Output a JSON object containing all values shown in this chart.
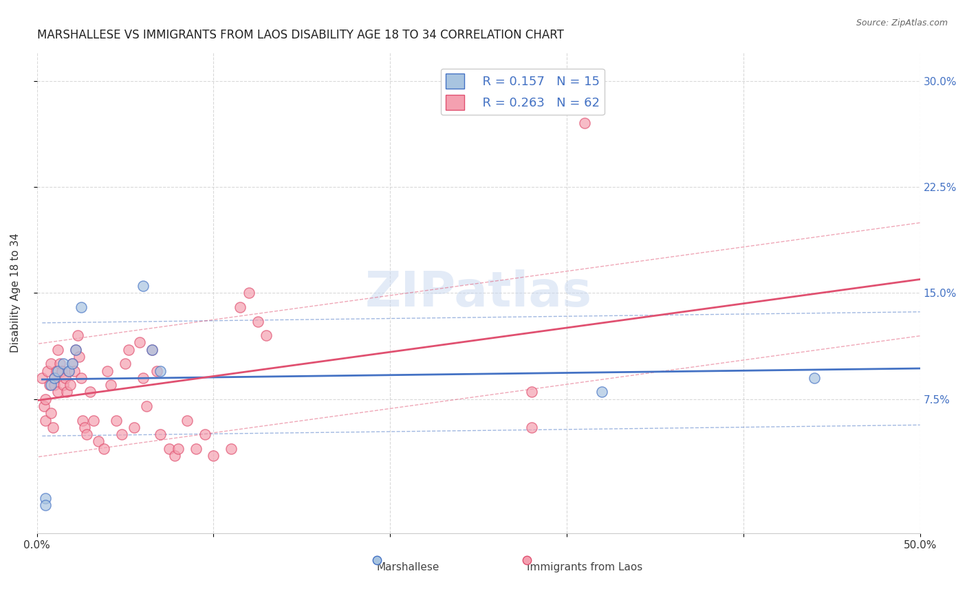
{
  "title": "MARSHALLESE VS IMMIGRANTS FROM LAOS DISABILITY AGE 18 TO 34 CORRELATION CHART",
  "source": "Source: ZipAtlas.com",
  "xlabel": "",
  "ylabel": "Disability Age 18 to 34",
  "legend_labels": [
    "Marshallese",
    "Immigrants from Laos"
  ],
  "r_marshallese": 0.157,
  "n_marshallese": 15,
  "r_laos": 0.263,
  "n_laos": 62,
  "xlim": [
    0.0,
    0.5
  ],
  "ylim": [
    -0.02,
    0.32
  ],
  "yticks": [
    0.075,
    0.15,
    0.225,
    0.3
  ],
  "ytick_labels": [
    "7.5%",
    "15.0%",
    "22.5%",
    "30.0%"
  ],
  "xticks": [
    0.0,
    0.1,
    0.2,
    0.3,
    0.4,
    0.5
  ],
  "xtick_labels": [
    "0.0%",
    "",
    "",
    "",
    "",
    "50.0%"
  ],
  "color_marshallese": "#a8c4e0",
  "color_laos": "#f4a0b0",
  "line_color_marshallese": "#4472c4",
  "line_color_laos": "#e05070",
  "watermark": "ZIPatlas",
  "marshallese_x": [
    0.005,
    0.005,
    0.008,
    0.01,
    0.012,
    0.015,
    0.018,
    0.02,
    0.022,
    0.025,
    0.06,
    0.065,
    0.07,
    0.32,
    0.44
  ],
  "marshallese_y": [
    0.005,
    0.0,
    0.085,
    0.09,
    0.095,
    0.1,
    0.095,
    0.1,
    0.11,
    0.14,
    0.155,
    0.11,
    0.095,
    0.08,
    0.09
  ],
  "laos_x": [
    0.003,
    0.004,
    0.005,
    0.005,
    0.006,
    0.007,
    0.008,
    0.008,
    0.009,
    0.01,
    0.01,
    0.011,
    0.012,
    0.012,
    0.013,
    0.014,
    0.015,
    0.016,
    0.017,
    0.018,
    0.019,
    0.02,
    0.021,
    0.022,
    0.023,
    0.024,
    0.025,
    0.026,
    0.027,
    0.028,
    0.03,
    0.032,
    0.035,
    0.038,
    0.04,
    0.042,
    0.045,
    0.048,
    0.05,
    0.052,
    0.055,
    0.058,
    0.06,
    0.062,
    0.065,
    0.068,
    0.07,
    0.075,
    0.078,
    0.08,
    0.085,
    0.09,
    0.095,
    0.1,
    0.11,
    0.115,
    0.12,
    0.125,
    0.13,
    0.28,
    0.31,
    0.28
  ],
  "laos_y": [
    0.09,
    0.07,
    0.06,
    0.075,
    0.095,
    0.085,
    0.1,
    0.065,
    0.055,
    0.09,
    0.085,
    0.095,
    0.11,
    0.08,
    0.1,
    0.095,
    0.085,
    0.09,
    0.08,
    0.095,
    0.085,
    0.1,
    0.095,
    0.11,
    0.12,
    0.105,
    0.09,
    0.06,
    0.055,
    0.05,
    0.08,
    0.06,
    0.045,
    0.04,
    0.095,
    0.085,
    0.06,
    0.05,
    0.1,
    0.11,
    0.055,
    0.115,
    0.09,
    0.07,
    0.11,
    0.095,
    0.05,
    0.04,
    0.035,
    0.04,
    0.06,
    0.04,
    0.05,
    0.035,
    0.04,
    0.14,
    0.15,
    0.13,
    0.12,
    0.08,
    0.27,
    0.055
  ]
}
